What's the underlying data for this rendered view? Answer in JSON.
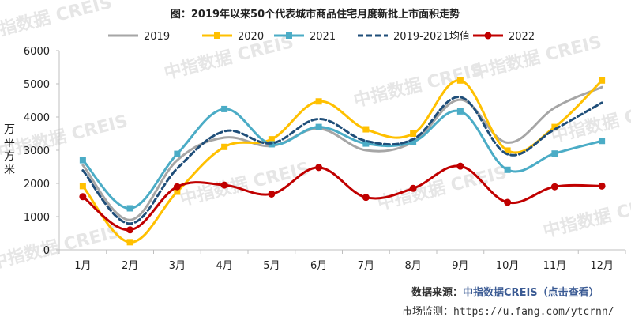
{
  "chart_data": {
    "type": "line",
    "title": "图：2019年以来50个代表城市商品住宅月度新批上市面积走势",
    "ylabel": "万平方米",
    "ylim": [
      0,
      6000
    ],
    "yticks": [
      0,
      1000,
      2000,
      3000,
      4000,
      5000,
      6000
    ],
    "categories": [
      "1月",
      "2月",
      "3月",
      "4月",
      "5月",
      "6月",
      "7月",
      "8月",
      "9月",
      "10月",
      "11月",
      "12月"
    ],
    "series": [
      {
        "name": "2019",
        "color": "#a6a6a6",
        "marker": "none",
        "dash": false,
        "values": [
          2550,
          900,
          2700,
          3380,
          3130,
          3650,
          3000,
          3250,
          4520,
          3230,
          4280,
          4900
        ]
      },
      {
        "name": "2020",
        "color": "#ffc000",
        "marker": "square",
        "dash": false,
        "values": [
          1920,
          230,
          1750,
          3100,
          3330,
          4470,
          3630,
          3500,
          5100,
          2990,
          3700,
          5100
        ]
      },
      {
        "name": "2021",
        "color": "#4bacc6",
        "marker": "square",
        "dash": false,
        "values": [
          2700,
          1250,
          2890,
          4240,
          3180,
          3700,
          3200,
          3250,
          4170,
          2410,
          2900,
          3280
        ]
      },
      {
        "name": "2019-2021均值",
        "color": "#1f4e79",
        "marker": "none",
        "dash": true,
        "values": [
          2390,
          790,
          2450,
          3570,
          3210,
          3940,
          3280,
          3330,
          4600,
          2880,
          3630,
          4430
        ]
      },
      {
        "name": "2022",
        "color": "#c00000",
        "marker": "circle",
        "dash": false,
        "values": [
          1600,
          600,
          1900,
          1950,
          1680,
          2480,
          1580,
          1850,
          2520,
          1430,
          1900,
          1920
        ]
      }
    ]
  },
  "watermark_text": "中指数据 CREIS",
  "source": {
    "prefix": "数据来源：",
    "link": "中指数据CREIS（点击查看）"
  },
  "monitor": {
    "prefix": "市场监测：",
    "url": "https://u.fang.com/ytcrnn/"
  }
}
